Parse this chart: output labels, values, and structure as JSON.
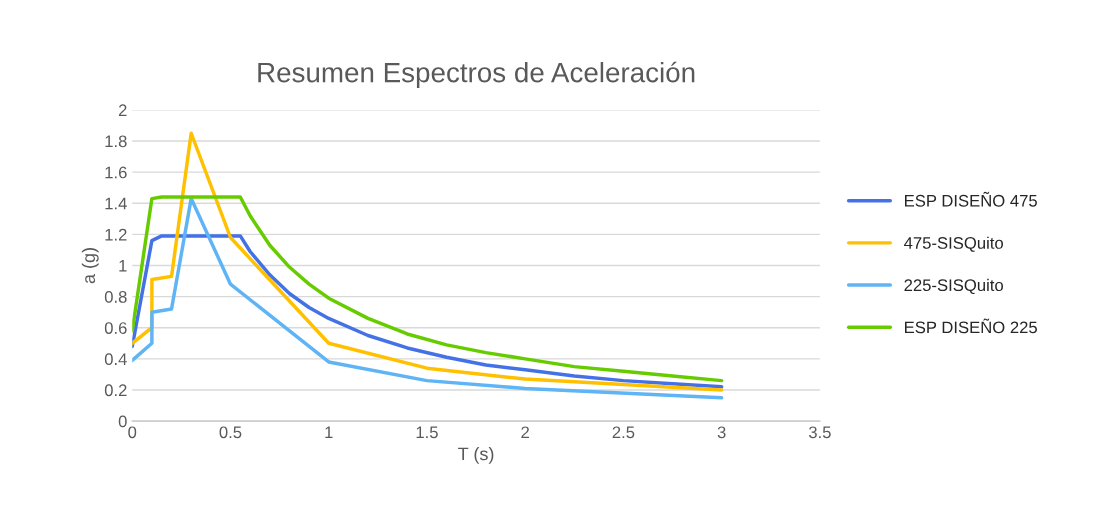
{
  "chart_data": {
    "type": "line",
    "title": "Resumen Espectros de Aceleración",
    "xlabel": "T (s)",
    "ylabel": "a (g)",
    "xlim": [
      0,
      3.5
    ],
    "xticks": [
      0,
      0.5,
      1,
      1.5,
      2,
      2.5,
      3,
      3.5
    ],
    "ylim": [
      0,
      2
    ],
    "yticks": [
      0,
      0.2,
      0.4,
      0.6,
      0.8,
      1,
      1.2,
      1.4,
      1.6,
      1.8,
      2
    ],
    "grid": "y",
    "legend": "right",
    "marker": "none",
    "line_style": "solid",
    "series": [
      {
        "name": "ESP DISEÑO 475",
        "color": "#4472e6",
        "x": [
          0,
          0.1,
          0.15,
          0.55,
          0.6,
          0.7,
          0.8,
          0.9,
          1,
          1.2,
          1.4,
          1.6,
          1.8,
          2,
          2.25,
          2.5,
          2.75,
          3
        ],
        "values": [
          0.48,
          1.16,
          1.19,
          1.19,
          1.09,
          0.94,
          0.82,
          0.73,
          0.66,
          0.55,
          0.47,
          0.41,
          0.36,
          0.33,
          0.29,
          0.26,
          0.24,
          0.22
        ]
      },
      {
        "name": "475-SISQuito",
        "color": "#ffc000",
        "x": [
          0,
          0.1,
          0.1,
          0.2,
          0.3,
          0.5,
          1,
          1.5,
          2,
          3
        ],
        "values": [
          0.5,
          0.6,
          0.91,
          0.93,
          1.85,
          1.18,
          0.5,
          0.34,
          0.27,
          0.2
        ]
      },
      {
        "name": "225-SISQuito",
        "color": "#5fb4f5",
        "x": [
          0,
          0.1,
          0.1,
          0.2,
          0.3,
          0.5,
          1,
          1.5,
          2,
          3
        ],
        "values": [
          0.39,
          0.5,
          0.7,
          0.72,
          1.43,
          0.88,
          0.38,
          0.26,
          0.21,
          0.15
        ]
      },
      {
        "name": "ESP DISEÑO 225",
        "color": "#66cc00",
        "x": [
          0,
          0.1,
          0.15,
          0.55,
          0.6,
          0.7,
          0.8,
          0.9,
          1,
          1.2,
          1.4,
          1.6,
          1.8,
          2,
          2.25,
          2.5,
          2.75,
          3
        ],
        "values": [
          0.58,
          1.43,
          1.44,
          1.44,
          1.32,
          1.13,
          0.99,
          0.88,
          0.79,
          0.66,
          0.56,
          0.49,
          0.44,
          0.4,
          0.35,
          0.32,
          0.29,
          0.26
        ]
      }
    ]
  }
}
